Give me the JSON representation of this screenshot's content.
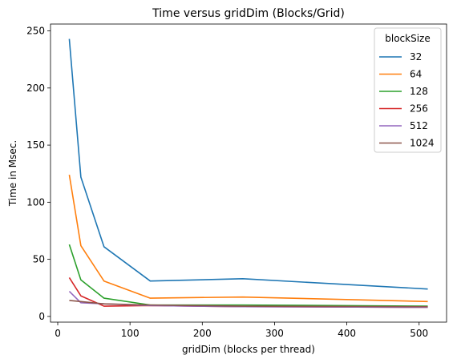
{
  "chart_data": {
    "type": "line",
    "title": "Time versus gridDim (Blocks/Grid)",
    "xlabel": "gridDim (blocks per thread)",
    "ylabel": "Time in Msec.",
    "xlim": [
      -10,
      538
    ],
    "ylim": [
      -5,
      256
    ],
    "x_ticks": [
      0,
      100,
      200,
      300,
      400,
      500
    ],
    "y_ticks": [
      0,
      50,
      100,
      150,
      200,
      250
    ],
    "legend": {
      "title": "blockSize",
      "position": "top-right"
    },
    "x": [
      16,
      32,
      64,
      128,
      256,
      512
    ],
    "series": [
      {
        "name": "32",
        "color": "#1f77b4",
        "values": [
          243,
          122,
          61,
          31,
          33,
          24
        ]
      },
      {
        "name": "64",
        "color": "#ff7f0e",
        "values": [
          124,
          62,
          31,
          16,
          17,
          13
        ]
      },
      {
        "name": "128",
        "color": "#2ca02c",
        "values": [
          63,
          32,
          16,
          10,
          10,
          9
        ]
      },
      {
        "name": "256",
        "color": "#d62728",
        "values": [
          34,
          18,
          9,
          9.5,
          8.5,
          8
        ]
      },
      {
        "name": "512",
        "color": "#9467bd",
        "values": [
          22,
          12,
          11,
          9.5,
          8.5,
          8
        ]
      },
      {
        "name": "1024",
        "color": "#8c564b",
        "values": [
          14,
          13,
          11,
          10,
          9,
          8.5
        ]
      }
    ]
  }
}
